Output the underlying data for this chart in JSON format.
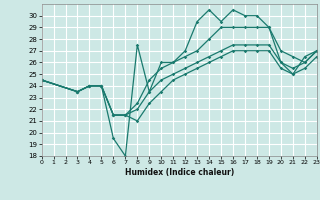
{
  "xlabel": "Humidex (Indice chaleur)",
  "bg_color": "#cde8e5",
  "grid_color": "#ffffff",
  "line_color": "#1a7a6e",
  "xlim": [
    0,
    23
  ],
  "ylim": [
    18,
    31
  ],
  "xticks": [
    0,
    1,
    2,
    3,
    4,
    5,
    6,
    7,
    8,
    9,
    10,
    11,
    12,
    13,
    14,
    15,
    16,
    17,
    18,
    19,
    20,
    21,
    22,
    23
  ],
  "yticks": [
    18,
    19,
    20,
    21,
    22,
    23,
    24,
    25,
    26,
    27,
    28,
    29,
    30
  ],
  "lines": [
    {
      "x": [
        0,
        3,
        4,
        5,
        6,
        7,
        8,
        9,
        10,
        11,
        12,
        13,
        14,
        15,
        16,
        17,
        18,
        19,
        20,
        21,
        22,
        23
      ],
      "y": [
        24.5,
        23.5,
        24.0,
        24.0,
        19.5,
        18.0,
        27.5,
        23.5,
        26.0,
        26.0,
        27.0,
        29.5,
        30.5,
        29.5,
        30.5,
        30.0,
        30.0,
        29.0,
        26.0,
        25.0,
        26.5,
        27.0
      ]
    },
    {
      "x": [
        0,
        3,
        4,
        5,
        6,
        7,
        8,
        9,
        10,
        11,
        12,
        13,
        14,
        15,
        16,
        17,
        18,
        19,
        20,
        21,
        22,
        23
      ],
      "y": [
        24.5,
        23.5,
        24.0,
        24.0,
        21.5,
        21.5,
        22.5,
        24.5,
        25.5,
        26.0,
        26.5,
        27.0,
        28.0,
        29.0,
        29.0,
        29.0,
        29.0,
        29.0,
        27.0,
        26.5,
        26.0,
        27.0
      ]
    },
    {
      "x": [
        0,
        3,
        4,
        5,
        6,
        7,
        8,
        9,
        10,
        11,
        12,
        13,
        14,
        15,
        16,
        17,
        18,
        19,
        20,
        21,
        22,
        23
      ],
      "y": [
        24.5,
        23.5,
        24.0,
        24.0,
        21.5,
        21.5,
        22.0,
        23.5,
        24.5,
        25.0,
        25.5,
        26.0,
        26.5,
        27.0,
        27.5,
        27.5,
        27.5,
        27.5,
        26.0,
        25.5,
        26.0,
        27.0
      ]
    },
    {
      "x": [
        0,
        3,
        4,
        5,
        6,
        7,
        8,
        9,
        10,
        11,
        12,
        13,
        14,
        15,
        16,
        17,
        18,
        19,
        20,
        21,
        22,
        23
      ],
      "y": [
        24.5,
        23.5,
        24.0,
        24.0,
        21.5,
        21.5,
        21.0,
        22.5,
        23.5,
        24.5,
        25.0,
        25.5,
        26.0,
        26.5,
        27.0,
        27.0,
        27.0,
        27.0,
        25.5,
        25.0,
        25.5,
        26.5
      ]
    }
  ]
}
